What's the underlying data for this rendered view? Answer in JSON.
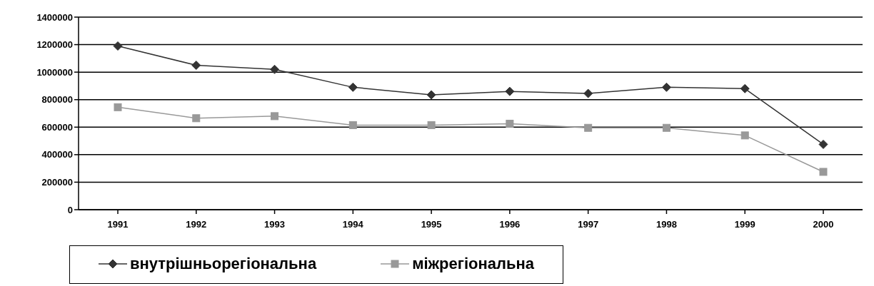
{
  "chart_data": {
    "type": "line",
    "categories": [
      "1991",
      "1992",
      "1993",
      "1994",
      "1995",
      "1996",
      "1997",
      "1998",
      "1999",
      "2000"
    ],
    "series": [
      {
        "name": "внутрішньорегіональна",
        "color": "#333333",
        "marker": "diamond",
        "values": [
          1190000,
          1050000,
          1020000,
          890000,
          835000,
          860000,
          845000,
          890000,
          880000,
          475000
        ]
      },
      {
        "name": "міжрегіональна",
        "color": "#999999",
        "marker": "square",
        "values": [
          745000,
          665000,
          680000,
          615000,
          615000,
          625000,
          595000,
          595000,
          540000,
          275000
        ]
      }
    ],
    "ylim": [
      0,
      1400000
    ],
    "yticks": [
      0,
      200000,
      400000,
      600000,
      800000,
      1000000,
      1200000,
      1400000
    ],
    "grid": "y",
    "legend": "bottom"
  }
}
